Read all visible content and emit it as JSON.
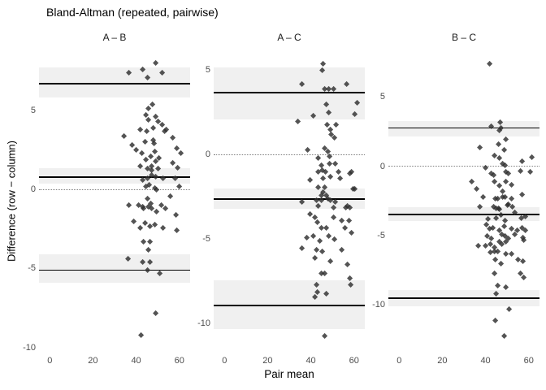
{
  "chart_data": {
    "type": "scatter",
    "title": "Bland-Altman (repeated, pairwise)",
    "xlabel": "Pair mean",
    "ylabel": "Difference (row − column)",
    "grid": false,
    "legend": "none",
    "marker": "diamond",
    "facet_layout": "three columns, shared x axis, free y scales",
    "xlim": [
      -5,
      65
    ],
    "xticks": [
      0,
      20,
      40,
      60
    ],
    "colors": {
      "background": "#ffffff",
      "ci_band": "#f0f0f0",
      "loa_line": "#000000",
      "zero_line": "#7f7f7f",
      "point": "#2e2e2e",
      "tick_text": "#4d4d4d",
      "strip_text": "#1a1a1a"
    },
    "panels": [
      {
        "label": "A – B",
        "ylim": [
          -10.2,
          8.8
        ],
        "yticks": [
          5,
          0,
          -5,
          -10
        ],
        "zero_line": 0,
        "bias": {
          "value": 0.8,
          "ci": [
            0.36,
            1.33
          ]
        },
        "upper_loa": {
          "value": 6.7,
          "ci": [
            5.8,
            7.7
          ]
        },
        "lower_loa": {
          "value": -5.1,
          "ci": [
            -5.9,
            -4.1
          ]
        },
        "points": [
          [
            36.7,
            7.4
          ],
          [
            43.1,
            7.6
          ],
          [
            45.3,
            7.1
          ],
          [
            49.1,
            8.0
          ],
          [
            52.0,
            7.4
          ],
          [
            47.6,
            5.4
          ],
          [
            45.7,
            5.1
          ],
          [
            49.1,
            4.6
          ],
          [
            44.6,
            4.7
          ],
          [
            50.2,
            4.3
          ],
          [
            45.7,
            4.4
          ],
          [
            52.0,
            4.1
          ],
          [
            53.9,
            3.8
          ],
          [
            41.9,
            3.8
          ],
          [
            44.9,
            3.7
          ],
          [
            47.9,
            3.9
          ],
          [
            53.2,
            3.7
          ],
          [
            34.5,
            3.4
          ],
          [
            38.2,
            2.8
          ],
          [
            42.7,
            2.3
          ],
          [
            48.3,
            2.9
          ],
          [
            48.7,
            2.4
          ],
          [
            44.6,
            1.9
          ],
          [
            49.1,
            1.8
          ],
          [
            56.9,
            3.3
          ],
          [
            58.8,
            2.6
          ],
          [
            60.7,
            2.3
          ],
          [
            56.9,
            1.7
          ],
          [
            59.2,
            1.4
          ],
          [
            45.3,
            1.3
          ],
          [
            47.2,
            1.2
          ],
          [
            50.2,
            1.3
          ],
          [
            43.1,
            0.6
          ],
          [
            45.3,
            0.7
          ],
          [
            47.2,
            0.9
          ],
          [
            49.1,
            0.8
          ],
          [
            52.4,
            0.7
          ],
          [
            58.0,
            0.7
          ],
          [
            59.9,
            0.2
          ],
          [
            55.8,
            -0.4
          ],
          [
            49.4,
            0.0
          ],
          [
            45.3,
            -0.6
          ],
          [
            46.8,
            -0.9
          ],
          [
            43.1,
            -1.1
          ],
          [
            36.7,
            -1.0
          ],
          [
            41.2,
            -1.0
          ],
          [
            43.4,
            -1.2
          ],
          [
            45.7,
            -1.1
          ],
          [
            47.2,
            -1.2
          ],
          [
            49.4,
            -1.4
          ],
          [
            51.7,
            -1.0
          ],
          [
            53.5,
            -1.2
          ],
          [
            39.0,
            -2.0
          ],
          [
            41.9,
            -2.4
          ],
          [
            44.2,
            -2.1
          ],
          [
            46.4,
            -2.3
          ],
          [
            48.7,
            -2.2
          ],
          [
            52.4,
            -2.4
          ],
          [
            58.4,
            -1.6
          ],
          [
            58.8,
            -2.6
          ],
          [
            43.4,
            -3.3
          ],
          [
            46.4,
            -3.3
          ],
          [
            45.7,
            -3.8
          ],
          [
            36.3,
            -4.4
          ],
          [
            43.1,
            -4.6
          ],
          [
            46.4,
            -4.6
          ],
          [
            45.3,
            -5.1
          ],
          [
            50.9,
            -5.3
          ],
          [
            49.1,
            -7.8
          ],
          [
            42.3,
            -9.2
          ],
          [
            46.8,
            2.1
          ],
          [
            48.0,
            3.1
          ],
          [
            44.0,
            3.0
          ],
          [
            47.0,
            1.5
          ],
          [
            50.5,
            2.0
          ],
          [
            46.0,
            0.3
          ],
          [
            48.5,
            0.1
          ],
          [
            44.5,
            0.2
          ],
          [
            42.0,
            1.5
          ],
          [
            40.0,
            2.5
          ]
        ]
      },
      {
        "label": "A – C",
        "ylim": [
          -11.6,
          6.2
        ],
        "yticks": [
          5,
          0,
          -5,
          -10
        ],
        "zero_line": 0,
        "bias": {
          "value": -2.6,
          "ci": [
            -3.2,
            -2.0
          ]
        },
        "upper_loa": {
          "value": 3.7,
          "ci": [
            2.1,
            5.2
          ]
        },
        "lower_loa": {
          "value": -8.9,
          "ci": [
            -10.3,
            -7.4
          ]
        },
        "points": [
          [
            45.7,
            5.4
          ],
          [
            45.3,
            5.0
          ],
          [
            35.7,
            4.2
          ],
          [
            56.6,
            4.2
          ],
          [
            46.5,
            3.9
          ],
          [
            48.4,
            3.9
          ],
          [
            50.4,
            3.9
          ],
          [
            47.3,
            3.0
          ],
          [
            61.6,
            3.1
          ],
          [
            48.4,
            2.5
          ],
          [
            41.1,
            2.3
          ],
          [
            60.5,
            2.4
          ],
          [
            34.1,
            2.0
          ],
          [
            47.7,
            1.8
          ],
          [
            51.6,
            1.8
          ],
          [
            49.2,
            1.5
          ],
          [
            49.6,
            1.2
          ],
          [
            50.8,
            1.0
          ],
          [
            38.4,
            0.3
          ],
          [
            46.5,
            0.4
          ],
          [
            48.1,
            0.2
          ],
          [
            58.9,
            -1.0
          ],
          [
            48.8,
            -0.1
          ],
          [
            43.4,
            -0.2
          ],
          [
            45.0,
            -0.6
          ],
          [
            48.8,
            -0.5
          ],
          [
            51.2,
            -0.5
          ],
          [
            45.3,
            -0.9
          ],
          [
            46.9,
            -1.0
          ],
          [
            43.4,
            -1.0
          ],
          [
            52.7,
            -1.0
          ],
          [
            58.1,
            -1.1
          ],
          [
            49.2,
            -1.3
          ],
          [
            45.7,
            -1.4
          ],
          [
            39.5,
            -1.5
          ],
          [
            53.5,
            -1.4
          ],
          [
            43.4,
            -1.9
          ],
          [
            46.5,
            -1.9
          ],
          [
            59.7,
            -2.0
          ],
          [
            45.7,
            -2.2
          ],
          [
            60.5,
            -2.0
          ],
          [
            47.3,
            -2.4
          ],
          [
            45.0,
            -2.4
          ],
          [
            49.2,
            -2.7
          ],
          [
            51.2,
            -2.8
          ],
          [
            42.6,
            -2.7
          ],
          [
            35.7,
            -2.8
          ],
          [
            56.2,
            -3.1
          ],
          [
            43.4,
            -3.0
          ],
          [
            45.0,
            -2.7
          ],
          [
            48.1,
            -2.6
          ],
          [
            50.4,
            -3.1
          ],
          [
            57.0,
            -3.0
          ],
          [
            58.1,
            -3.1
          ],
          [
            39.5,
            -3.5
          ],
          [
            41.9,
            -3.7
          ],
          [
            50.4,
            -3.7
          ],
          [
            54.3,
            -3.9
          ],
          [
            57.8,
            -3.9
          ],
          [
            43.0,
            -4.0
          ],
          [
            45.0,
            -4.3
          ],
          [
            47.3,
            -4.3
          ],
          [
            55.8,
            -4.3
          ],
          [
            58.9,
            -4.6
          ],
          [
            38.0,
            -4.9
          ],
          [
            41.1,
            -4.8
          ],
          [
            44.2,
            -5.1
          ],
          [
            48.4,
            -4.8
          ],
          [
            50.8,
            -5.0
          ],
          [
            35.7,
            -5.5
          ],
          [
            42.6,
            -5.6
          ],
          [
            45.3,
            -5.7
          ],
          [
            54.3,
            -5.6
          ],
          [
            41.9,
            -6.1
          ],
          [
            49.2,
            -6.3
          ],
          [
            57.0,
            -6.5
          ],
          [
            45.0,
            -7.0
          ],
          [
            46.5,
            -7.0
          ],
          [
            58.1,
            -7.3
          ],
          [
            42.6,
            -7.7
          ],
          [
            58.5,
            -7.7
          ],
          [
            43.0,
            -8.1
          ],
          [
            47.3,
            -8.2
          ],
          [
            41.9,
            -8.4
          ],
          [
            46.5,
            -10.7
          ]
        ]
      },
      {
        "label": "B – C",
        "ylim": [
          -13.3,
          8.4
        ],
        "yticks": [
          5,
          0,
          -5,
          -10
        ],
        "zero_line": 0,
        "bias": {
          "value": -3.45,
          "ci": [
            -3.9,
            -2.9
          ]
        },
        "upper_loa": {
          "value": 2.8,
          "ci": [
            2.2,
            3.3
          ]
        },
        "lower_loa": {
          "value": -9.5,
          "ci": [
            -10.1,
            -8.9
          ]
        },
        "points": [
          [
            41.8,
            7.4
          ],
          [
            42.5,
            2.9
          ],
          [
            46.6,
            3.2
          ],
          [
            47.0,
            2.8
          ],
          [
            46.3,
            2.6
          ],
          [
            49.3,
            2.0
          ],
          [
            45.9,
            1.6
          ],
          [
            37.3,
            1.4
          ],
          [
            48.5,
            1.2
          ],
          [
            44.0,
            0.8
          ],
          [
            46.3,
            0.6
          ],
          [
            61.6,
            0.7
          ],
          [
            57.1,
            0.4
          ],
          [
            47.8,
            0.2
          ],
          [
            48.9,
            0.1
          ],
          [
            39.9,
            -0.1
          ],
          [
            56.3,
            -0.3
          ],
          [
            60.8,
            -0.4
          ],
          [
            42.5,
            -0.5
          ],
          [
            43.7,
            -0.6
          ],
          [
            49.6,
            -0.4
          ],
          [
            50.4,
            -0.5
          ],
          [
            33.6,
            -1.1
          ],
          [
            44.0,
            -1.1
          ],
          [
            49.6,
            -1.1
          ],
          [
            52.2,
            -1.3
          ],
          [
            35.8,
            -1.6
          ],
          [
            46.3,
            -1.4
          ],
          [
            47.8,
            -1.8
          ],
          [
            57.1,
            -2.0
          ],
          [
            38.8,
            -2.2
          ],
          [
            45.5,
            -2.3
          ],
          [
            48.9,
            -2.2
          ],
          [
            50.7,
            -2.7
          ],
          [
            44.8,
            -3.0
          ],
          [
            46.3,
            -3.1
          ],
          [
            44.4,
            -2.3
          ],
          [
            48.1,
            -2.2
          ],
          [
            51.9,
            -2.3
          ],
          [
            37.3,
            -2.9
          ],
          [
            43.7,
            -2.9
          ],
          [
            45.9,
            -3.0
          ],
          [
            50.0,
            -2.8
          ],
          [
            52.6,
            -2.9
          ],
          [
            41.0,
            -3.8
          ],
          [
            44.8,
            -3.7
          ],
          [
            47.0,
            -3.5
          ],
          [
            48.9,
            -3.9
          ],
          [
            53.7,
            -3.3
          ],
          [
            56.7,
            -3.7
          ],
          [
            58.6,
            -3.6
          ],
          [
            40.3,
            -4.2
          ],
          [
            41.8,
            -4.5
          ],
          [
            43.3,
            -4.4
          ],
          [
            46.3,
            -4.6
          ],
          [
            48.5,
            -4.3
          ],
          [
            51.9,
            -4.5
          ],
          [
            54.5,
            -4.6
          ],
          [
            57.1,
            -4.4
          ],
          [
            58.6,
            -4.6
          ],
          [
            40.7,
            -5.0
          ],
          [
            42.5,
            -5.2
          ],
          [
            47.4,
            -4.9
          ],
          [
            48.9,
            -5.0
          ],
          [
            50.7,
            -5.2
          ],
          [
            53.7,
            -4.9
          ],
          [
            57.5,
            -5.1
          ],
          [
            36.6,
            -5.7
          ],
          [
            39.9,
            -5.7
          ],
          [
            42.2,
            -5.6
          ],
          [
            44.0,
            -5.8
          ],
          [
            46.3,
            -5.4
          ],
          [
            47.4,
            -5.6
          ],
          [
            49.3,
            -5.4
          ],
          [
            57.8,
            -5.3
          ],
          [
            42.2,
            -6.2
          ],
          [
            44.0,
            -6.1
          ],
          [
            45.5,
            -6.1
          ],
          [
            49.3,
            -6.3
          ],
          [
            52.2,
            -6.3
          ],
          [
            44.4,
            -6.7
          ],
          [
            47.0,
            -7.0
          ],
          [
            55.2,
            -6.7
          ],
          [
            57.5,
            -6.8
          ],
          [
            44.0,
            -7.7
          ],
          [
            56.3,
            -7.7
          ],
          [
            57.8,
            -8.0
          ],
          [
            45.5,
            -8.6
          ],
          [
            49.6,
            -8.7
          ],
          [
            44.8,
            -9.2
          ],
          [
            51.1,
            -10.3
          ],
          [
            44.4,
            -11.1
          ],
          [
            48.5,
            -12.2
          ]
        ]
      }
    ]
  }
}
